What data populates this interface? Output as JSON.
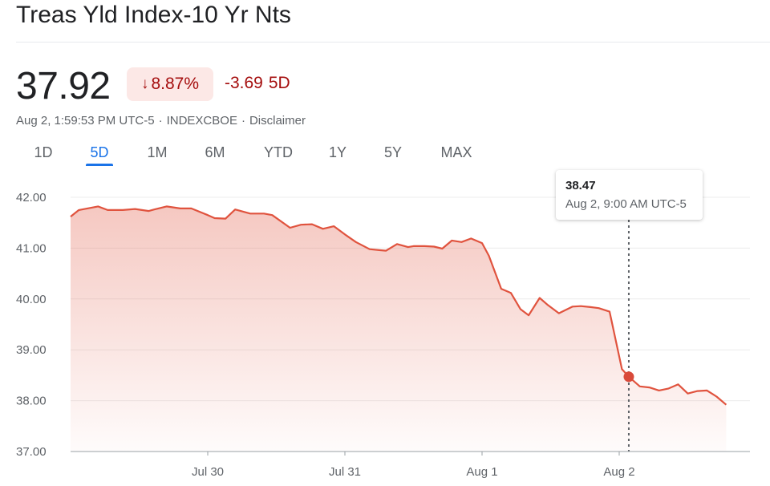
{
  "header": {
    "title": "Treas Yld Index-10 Yr Nts",
    "price": "37.92",
    "percent_change": "8.87%",
    "percent_direction_icon": "arrow-down-icon",
    "change_value": "-3.69",
    "change_period": "5D",
    "timestamp": "Aug 2, 1:59:53 PM UTC-5",
    "exchange": "INDEXCBOE",
    "disclaimer": "Disclaimer",
    "separator": "·"
  },
  "colors": {
    "negative": "#a50e0e",
    "negative_bg": "#fce8e6",
    "line": "#e0533e",
    "accent": "#1a73e8"
  },
  "tabs": [
    {
      "label": "1D",
      "active": false
    },
    {
      "label": "5D",
      "active": true
    },
    {
      "label": "1M",
      "active": false
    },
    {
      "label": "6M",
      "active": false
    },
    {
      "label": "YTD",
      "active": false
    },
    {
      "label": "1Y",
      "active": false
    },
    {
      "label": "5Y",
      "active": false
    },
    {
      "label": "MAX",
      "active": false
    }
  ],
  "tooltip": {
    "value": "38.47",
    "time": "Aug 2, 9:00 AM UTC-5"
  },
  "chart_data": {
    "type": "area",
    "ylim": [
      37,
      42
    ],
    "yticks": [
      "42.00",
      "41.00",
      "40.00",
      "39.00",
      "38.00",
      "37.00"
    ],
    "xticks": [
      {
        "label": "Jul 30",
        "day": 1
      },
      {
        "label": "Jul 31",
        "day": 2
      },
      {
        "label": "Aug 1",
        "day": 3
      },
      {
        "label": "Aug 2",
        "day": 4
      }
    ],
    "grid": true,
    "highlight": {
      "day": 4.07,
      "y": 38.47
    },
    "series": [
      {
        "x": [
          0.0,
          0.06,
          0.2,
          0.27,
          0.38,
          0.47,
          0.57,
          0.61,
          0.7,
          0.8,
          0.88,
          1.0,
          1.05,
          1.13,
          1.2,
          1.31,
          1.41,
          1.47,
          1.6,
          1.68,
          1.76,
          1.84,
          1.92,
          2.0,
          2.08,
          2.18,
          2.25,
          2.3,
          2.38,
          2.46,
          2.5,
          2.58,
          2.65,
          2.71,
          2.78,
          2.85,
          2.92,
          3.0,
          3.05,
          3.14,
          3.21,
          3.28,
          3.34,
          3.42,
          3.48,
          3.56,
          3.66,
          3.72,
          3.79,
          3.85,
          3.93,
          4.02,
          4.07,
          4.15,
          4.22,
          4.29,
          4.36,
          4.43,
          4.5,
          4.57,
          4.64,
          4.71,
          4.78
        ],
        "y": [
          41.62,
          41.75,
          41.82,
          41.75,
          41.75,
          41.77,
          41.73,
          41.76,
          41.82,
          41.78,
          41.78,
          41.65,
          41.59,
          41.58,
          41.76,
          41.68,
          41.68,
          41.65,
          41.4,
          41.46,
          41.47,
          41.38,
          41.43,
          41.27,
          41.12,
          40.98,
          40.96,
          40.95,
          41.08,
          41.02,
          41.04,
          41.04,
          41.03,
          40.99,
          41.15,
          41.12,
          41.19,
          41.1,
          40.85,
          40.2,
          40.12,
          39.8,
          39.68,
          40.02,
          39.88,
          39.72,
          39.85,
          39.86,
          39.84,
          39.82,
          39.75,
          38.62,
          38.47,
          38.28,
          38.26,
          38.2,
          38.24,
          38.32,
          38.14,
          38.19,
          38.2,
          38.08,
          37.92
        ]
      }
    ]
  }
}
